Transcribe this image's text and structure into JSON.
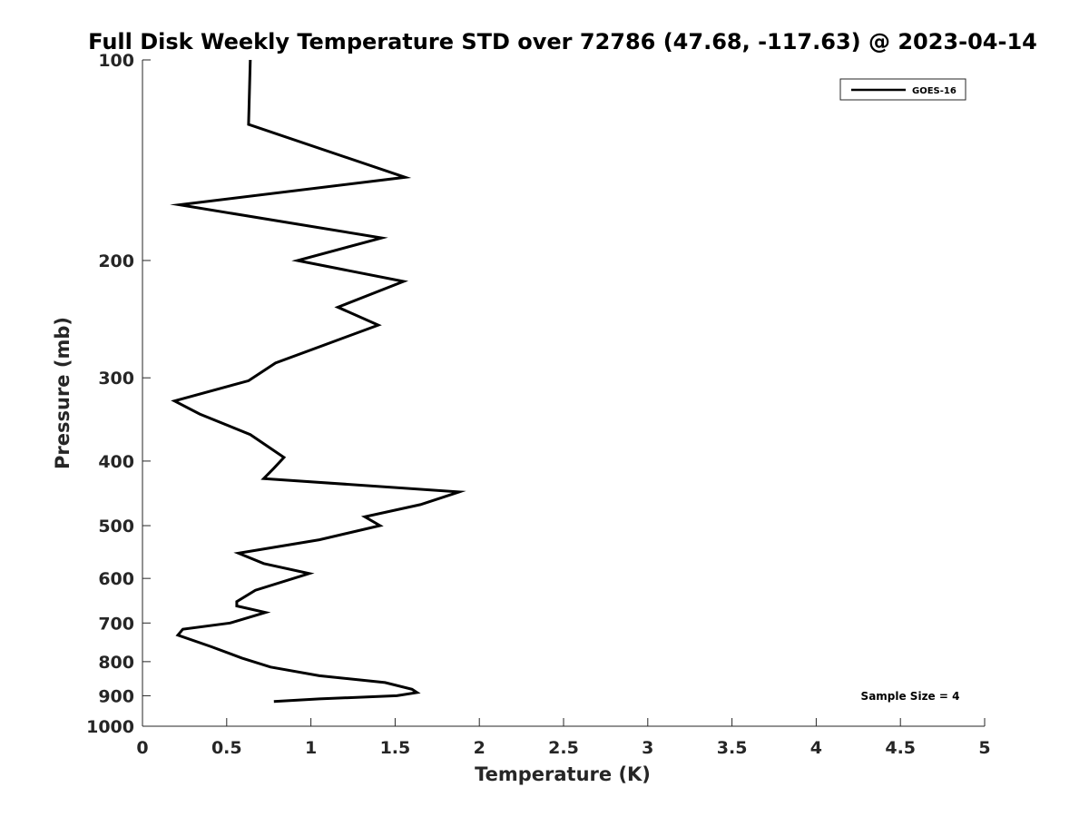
{
  "chart_data": {
    "type": "line",
    "title": "Full Disk Weekly Temperature STD over 72786 (47.68, -117.63) @ 2023-04-14",
    "xlabel": "Temperature (K)",
    "ylabel": "Pressure (mb)",
    "xlim": [
      0,
      5
    ],
    "ylim": [
      100,
      1000
    ],
    "y_scale": "log",
    "y_reversed": true,
    "x_ticks": [
      "0",
      "0.5",
      "1",
      "1.5",
      "2",
      "2.5",
      "3",
      "3.5",
      "4",
      "4.5",
      "5"
    ],
    "y_ticks": [
      "100",
      "200",
      "300",
      "400",
      "500",
      "600",
      "700",
      "800",
      "900",
      "1000"
    ],
    "grid": false,
    "legend_position": "top-right",
    "annotation": "Sample Size = 4",
    "series": [
      {
        "name": "GOES-16",
        "color": "#000000",
        "points": [
          [
            0.64,
            100
          ],
          [
            0.63,
            125
          ],
          [
            1.56,
            150
          ],
          [
            0.22,
            165
          ],
          [
            1.42,
            185
          ],
          [
            0.92,
            200
          ],
          [
            1.55,
            215
          ],
          [
            1.16,
            235
          ],
          [
            1.4,
            250
          ],
          [
            0.79,
            285
          ],
          [
            0.63,
            303
          ],
          [
            0.19,
            325
          ],
          [
            0.34,
            340
          ],
          [
            0.64,
            365
          ],
          [
            0.84,
            395
          ],
          [
            0.78,
            410
          ],
          [
            0.72,
            425
          ],
          [
            1.88,
            445
          ],
          [
            1.65,
            465
          ],
          [
            1.32,
            485
          ],
          [
            1.41,
            500
          ],
          [
            1.05,
            525
          ],
          [
            0.57,
            550
          ],
          [
            0.72,
            570
          ],
          [
            0.99,
            590
          ],
          [
            0.67,
            625
          ],
          [
            0.56,
            650
          ],
          [
            0.56,
            660
          ],
          [
            0.73,
            675
          ],
          [
            0.52,
            700
          ],
          [
            0.24,
            715
          ],
          [
            0.21,
            730
          ],
          [
            0.41,
            760
          ],
          [
            0.59,
            790
          ],
          [
            0.76,
            815
          ],
          [
            1.05,
            840
          ],
          [
            1.44,
            860
          ],
          [
            1.6,
            880
          ],
          [
            1.63,
            890
          ],
          [
            1.51,
            900
          ],
          [
            1.05,
            910
          ],
          [
            0.78,
            918
          ]
        ]
      }
    ]
  }
}
